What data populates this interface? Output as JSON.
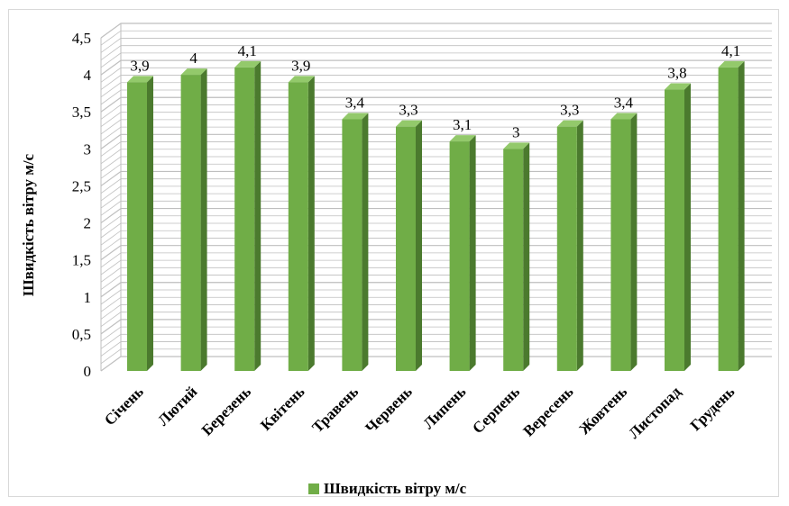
{
  "chart_data": {
    "type": "bar",
    "title": "",
    "xlabel": "",
    "ylabel": "Швидкість вітру м/с",
    "ylim": [
      0,
      4.5
    ],
    "yticks": [
      "0",
      "0,5",
      "1",
      "1,5",
      "2",
      "2,5",
      "3",
      "3,5",
      "4",
      "4,5"
    ],
    "categories": [
      "Січень",
      "Лютий",
      "Березень",
      "Квітень",
      "Травень",
      "Червень",
      "Липень",
      "Серпень",
      "Вересень",
      "Жовтень",
      "Листопад",
      "Грудень"
    ],
    "series": [
      {
        "name": "Швидкість вітру м/с",
        "values": [
          3.9,
          4,
          4.1,
          3.9,
          3.4,
          3.3,
          3.1,
          3,
          3.3,
          3.4,
          3.8,
          4.1
        ],
        "labels": [
          "3,9",
          "4",
          "4,1",
          "3,9",
          "3,4",
          "3,3",
          "3,1",
          "3",
          "3,3",
          "3,4",
          "3,8",
          "4,1"
        ]
      }
    ],
    "legend_position": "bottom",
    "grid": true,
    "colors": {
      "bar_front": "#70ad47",
      "bar_side": "#4b7a2e",
      "bar_top": "#93c96b",
      "grid": "#bfbfbf",
      "legend_swatch": "#70ad47"
    }
  }
}
